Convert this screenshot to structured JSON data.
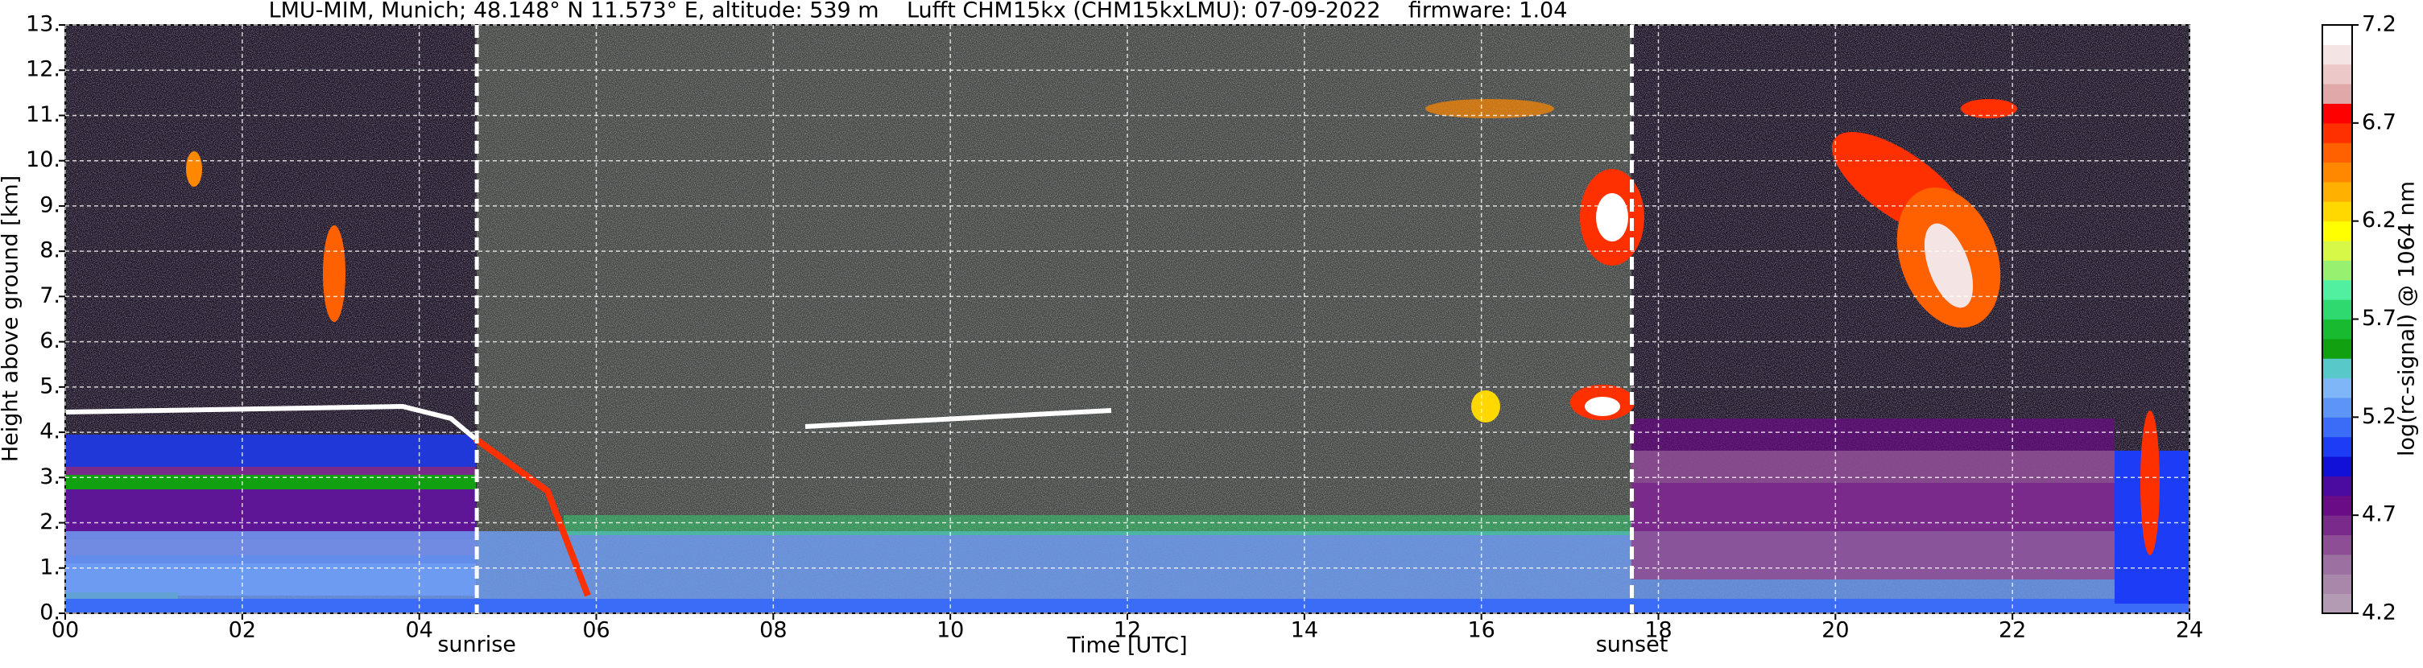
{
  "chart_data": {
    "type": "heatmap",
    "title": "LMU-MIM, Munich; 48.148° N 11.573° E, altitude: 539 m    Lufft CHM15kx (CHM15kxLMU): 07-09-2022    firmware: 1.04",
    "x_label": "Time [UTC]",
    "y_label": "Height above ground [km]",
    "xlim": [
      0,
      24
    ],
    "ylim": [
      0,
      13
    ],
    "xticks": [
      {
        "value": 0,
        "label": "00"
      },
      {
        "value": 2,
        "label": "02"
      },
      {
        "value": 4,
        "label": "04"
      },
      {
        "value": 6,
        "label": "06"
      },
      {
        "value": 8,
        "label": "08"
      },
      {
        "value": 10,
        "label": "10"
      },
      {
        "value": 12,
        "label": "12"
      },
      {
        "value": 14,
        "label": "14"
      },
      {
        "value": 16,
        "label": "16"
      },
      {
        "value": 18,
        "label": "18"
      },
      {
        "value": 20,
        "label": "20"
      },
      {
        "value": 22,
        "label": "22"
      },
      {
        "value": 24,
        "label": "24"
      }
    ],
    "yticks": [
      {
        "value": 0,
        "label": "0."
      },
      {
        "value": 1,
        "label": "1."
      },
      {
        "value": 2,
        "label": "2."
      },
      {
        "value": 3,
        "label": "3."
      },
      {
        "value": 4,
        "label": "4."
      },
      {
        "value": 5,
        "label": "5."
      },
      {
        "value": 6,
        "label": "6."
      },
      {
        "value": 7,
        "label": "7."
      },
      {
        "value": 8,
        "label": "8."
      },
      {
        "value": 9,
        "label": "9."
      },
      {
        "value": 10,
        "label": "10."
      },
      {
        "value": 11,
        "label": "11."
      },
      {
        "value": 12,
        "label": "12."
      },
      {
        "value": 13,
        "label": "13."
      }
    ],
    "grid": true,
    "annotations": [
      {
        "text": "sunrise",
        "x": 4.65
      },
      {
        "text": "sunset",
        "x": 17.7
      }
    ],
    "colorbar": {
      "label": "log(rc-signal) @ 1064 nm",
      "lim": [
        4.2,
        7.2
      ],
      "ticks": [
        4.2,
        4.7,
        5.2,
        5.7,
        6.2,
        6.7,
        7.2
      ],
      "colors": [
        "#b39bb3",
        "#a887aa",
        "#9c70a0",
        "#8e4e95",
        "#7a2a8a",
        "#6a0c86",
        "#4b0aa0",
        "#1010d8",
        "#1d3cf5",
        "#3b6cf7",
        "#5c95f5",
        "#7fb6f7",
        "#58c8c8",
        "#10a010",
        "#18bb30",
        "#30d870",
        "#50f0a0",
        "#98f070",
        "#d8f848",
        "#ffff00",
        "#ffd800",
        "#ffb000",
        "#ff8800",
        "#ff6000",
        "#ff3000",
        "#ff0000",
        "#e0a8a8",
        "#ecc8c8",
        "#f4e4e4",
        "#ffffff"
      ]
    }
  }
}
